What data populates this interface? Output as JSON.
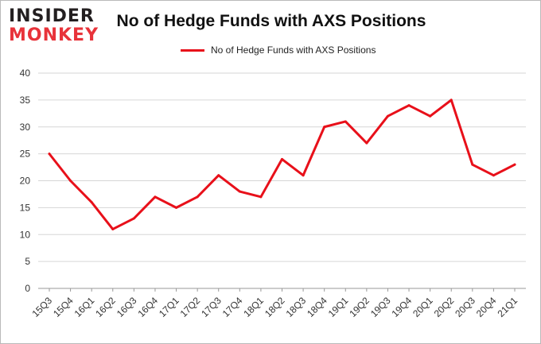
{
  "logo": {
    "line1": "INSIDER",
    "line2": "MONKEY"
  },
  "chart_data": {
    "type": "line",
    "title": "No of Hedge Funds with AXS Positions",
    "xlabel": "",
    "ylabel": "",
    "categories": [
      "15Q3",
      "15Q4",
      "16Q1",
      "16Q2",
      "16Q3",
      "16Q4",
      "17Q1",
      "17Q2",
      "17Q3",
      "17Q4",
      "18Q1",
      "18Q2",
      "18Q3",
      "18Q4",
      "19Q1",
      "19Q2",
      "19Q3",
      "19Q4",
      "20Q1",
      "20Q2",
      "20Q3",
      "20Q4",
      "21Q1"
    ],
    "series": [
      {
        "name": "No of Hedge Funds with AXS Positions",
        "values": [
          25,
          20,
          16,
          11,
          13,
          17,
          15,
          17,
          21,
          18,
          17,
          24,
          21,
          30,
          31,
          27,
          32,
          34,
          32,
          35,
          23,
          21,
          23
        ]
      }
    ],
    "ylim": [
      0,
      40
    ],
    "yticks": [
      0,
      5,
      10,
      15,
      20,
      25,
      30,
      35,
      40
    ],
    "grid": true,
    "legend": "top-center",
    "color": "#e8101a"
  }
}
